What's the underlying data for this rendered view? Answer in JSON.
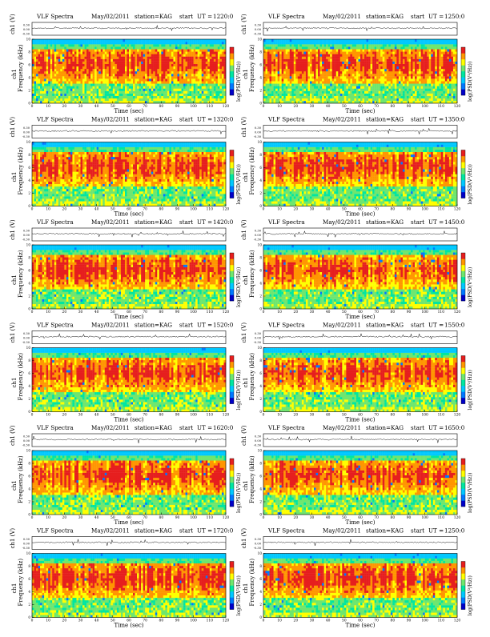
{
  "chart_data": {
    "type": "heatmap",
    "panel_header": {
      "title": "VLF Spectra",
      "date": "May/02/2011",
      "station": "station=KAG",
      "start_prefix": "start",
      "ut_prefix": "UT ="
    },
    "waveform_ylabel": "ch1 (V)",
    "waveform_yticks": [
      "0.30",
      "0.00",
      "-0.30"
    ],
    "spectrogram_ylabel_channel": "ch1",
    "spectrogram_ylabel": "Frequency (kHz)",
    "spectrogram_ylim": [
      0,
      10
    ],
    "spectrogram_yticks": [
      0,
      2,
      4,
      6,
      8,
      10
    ],
    "xlabel": "Time (sec)",
    "xlim": [
      0,
      120
    ],
    "xticks": [
      0,
      10,
      20,
      30,
      40,
      50,
      60,
      70,
      80,
      90,
      100,
      110,
      120
    ],
    "colorbar_label": "log(PSD(V²/Hz))",
    "colorscale": [
      "#0000c8",
      "#0078ff",
      "#00c8ff",
      "#00e6a0",
      "#6ee66e",
      "#ffff00",
      "#ff9600",
      "#e61e1e"
    ],
    "panels": [
      {
        "start_ut": "1220:0"
      },
      {
        "start_ut": "1250:0"
      },
      {
        "start_ut": "1320:0"
      },
      {
        "start_ut": "1350:0"
      },
      {
        "start_ut": "1420:0"
      },
      {
        "start_ut": "1450:0"
      },
      {
        "start_ut": "1520:0"
      },
      {
        "start_ut": "1550:0"
      },
      {
        "start_ut": "1620:0"
      },
      {
        "start_ut": "1650:0"
      },
      {
        "start_ut": "1720:0"
      },
      {
        "start_ut": "1250:0"
      }
    ]
  }
}
